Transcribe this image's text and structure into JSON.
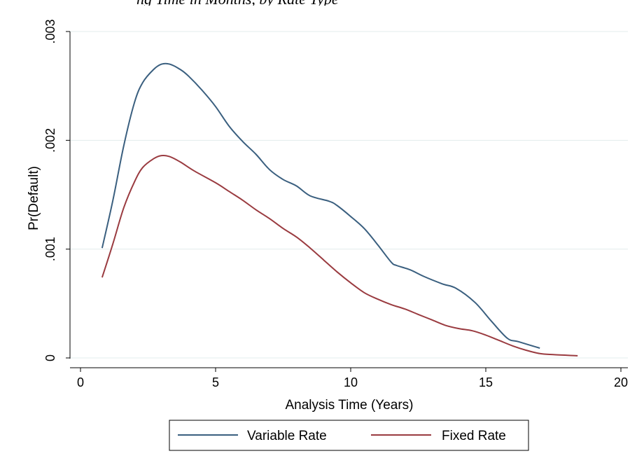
{
  "chart_data": {
    "type": "line",
    "title": "",
    "clipped_header": "ng Time in Months, by Rate Type",
    "xlabel": "Analysis Time (Years)",
    "ylabel": "Pr(Default)",
    "xlim": [
      0,
      20
    ],
    "ylim": [
      0,
      0.003
    ],
    "x_ticks": [
      0,
      5,
      10,
      15,
      20
    ],
    "x_tick_labels": [
      "0",
      "5",
      "10",
      "15",
      "20"
    ],
    "y_ticks": [
      0,
      0.001,
      0.002,
      0.003
    ],
    "y_tick_labels": [
      "0",
      ".001",
      ".002",
      ".003"
    ],
    "grid": true,
    "legend_position": "bottom",
    "series": [
      {
        "name": "Variable Rate",
        "color": "#3a5f7f",
        "points": [
          [
            0.8,
            0.00101
          ],
          [
            1.2,
            0.00145
          ],
          [
            1.6,
            0.00195
          ],
          [
            2.0,
            0.00235
          ],
          [
            2.3,
            0.00253
          ],
          [
            2.7,
            0.00265
          ],
          [
            3.0,
            0.0027
          ],
          [
            3.3,
            0.0027
          ],
          [
            3.7,
            0.00265
          ],
          [
            4.0,
            0.00259
          ],
          [
            4.5,
            0.00246
          ],
          [
            5.0,
            0.00231
          ],
          [
            5.5,
            0.00213
          ],
          [
            6.0,
            0.00199
          ],
          [
            6.5,
            0.00187
          ],
          [
            7.0,
            0.00173
          ],
          [
            7.5,
            0.00164
          ],
          [
            8.0,
            0.00158
          ],
          [
            8.5,
            0.00149
          ],
          [
            9.2,
            0.00144
          ],
          [
            9.5,
            0.0014
          ],
          [
            10.0,
            0.0013
          ],
          [
            10.5,
            0.00119
          ],
          [
            11.0,
            0.00104
          ],
          [
            11.5,
            0.00088
          ],
          [
            11.7,
            0.00085
          ],
          [
            12.2,
            0.00081
          ],
          [
            12.7,
            0.00075
          ],
          [
            13.4,
            0.00068
          ],
          [
            13.9,
            0.00064
          ],
          [
            14.6,
            0.00051
          ],
          [
            15.2,
            0.00034
          ],
          [
            15.8,
            0.00018
          ],
          [
            16.2,
            0.00015
          ],
          [
            17.0,
            9e-05
          ]
        ]
      },
      {
        "name": "Fixed Rate",
        "color": "#9a3b40",
        "points": [
          [
            0.8,
            0.00074
          ],
          [
            1.2,
            0.00105
          ],
          [
            1.6,
            0.00138
          ],
          [
            2.0,
            0.00162
          ],
          [
            2.3,
            0.00175
          ],
          [
            2.7,
            0.00183
          ],
          [
            3.0,
            0.00186
          ],
          [
            3.3,
            0.00185
          ],
          [
            3.7,
            0.0018
          ],
          [
            4.2,
            0.00172
          ],
          [
            5.0,
            0.00161
          ],
          [
            5.5,
            0.00153
          ],
          [
            6.0,
            0.00145
          ],
          [
            6.5,
            0.00136
          ],
          [
            7.0,
            0.00128
          ],
          [
            7.5,
            0.00119
          ],
          [
            8.0,
            0.00111
          ],
          [
            8.5,
            0.00101
          ],
          [
            9.0,
            0.0009
          ],
          [
            9.5,
            0.00079
          ],
          [
            10.0,
            0.00069
          ],
          [
            10.5,
            0.0006
          ],
          [
            11.0,
            0.00054
          ],
          [
            11.5,
            0.00049
          ],
          [
            12.0,
            0.00045
          ],
          [
            12.5,
            0.0004
          ],
          [
            13.0,
            0.00035
          ],
          [
            13.5,
            0.0003
          ],
          [
            14.0,
            0.00027
          ],
          [
            14.5,
            0.00025
          ],
          [
            15.0,
            0.00021
          ],
          [
            15.5,
            0.00016
          ],
          [
            16.0,
            0.00011
          ],
          [
            16.5,
            7e-05
          ],
          [
            17.0,
            4e-05
          ],
          [
            17.5,
            3e-05
          ],
          [
            18.4,
            2e-05
          ]
        ]
      }
    ]
  }
}
